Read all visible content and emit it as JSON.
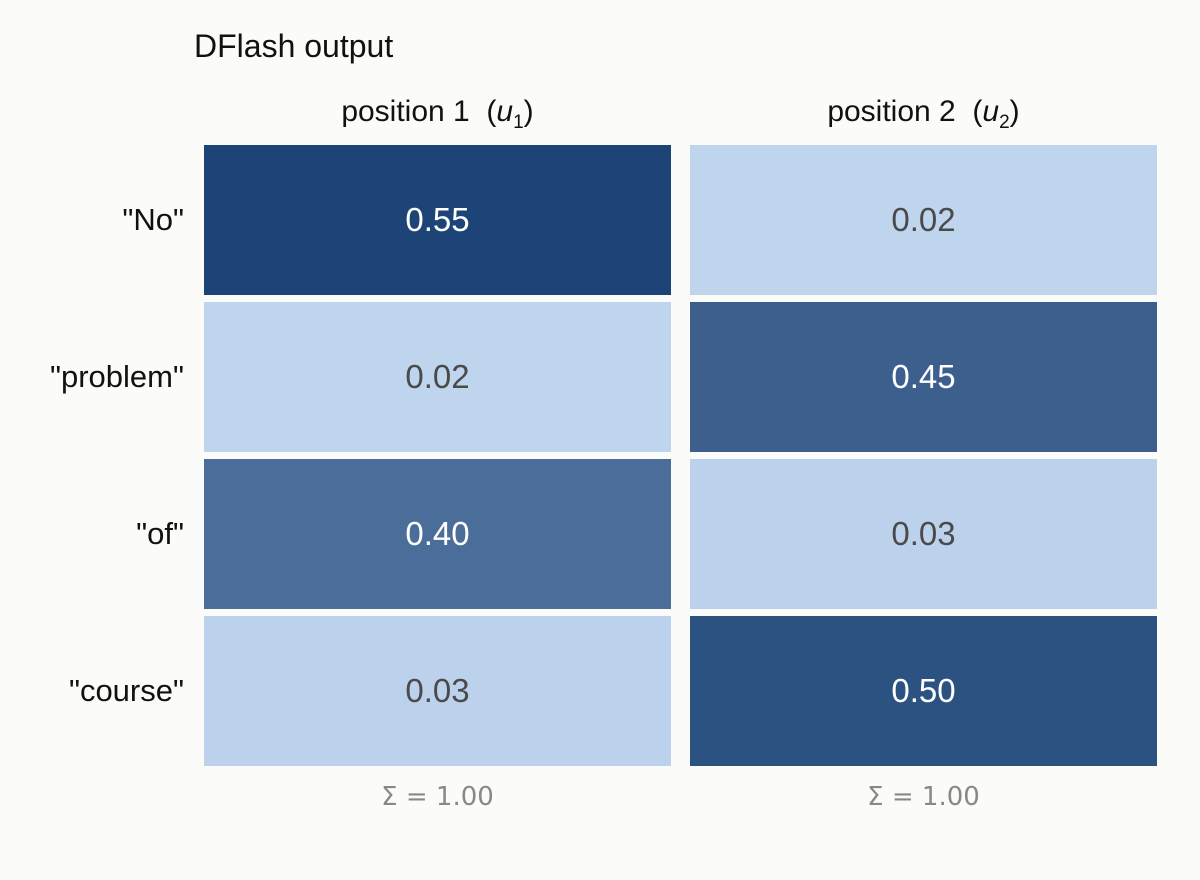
{
  "chart_data": {
    "type": "heatmap",
    "title": "DFlash output",
    "columns": [
      {
        "label": "position 1",
        "var": "u",
        "sub": "1",
        "sum_label": "Σ = 1.00"
      },
      {
        "label": "position 2",
        "var": "u",
        "sub": "2",
        "sum_label": "Σ = 1.00"
      }
    ],
    "rows": [
      "\"No\"",
      "\"problem\"",
      "\"of\"",
      "\"course\""
    ],
    "values": [
      [
        0.55,
        0.02
      ],
      [
        0.02,
        0.45
      ],
      [
        0.4,
        0.03
      ],
      [
        0.03,
        0.5
      ]
    ],
    "value_labels": [
      [
        "0.55",
        "0.02"
      ],
      [
        "0.02",
        "0.45"
      ],
      [
        "0.40",
        "0.03"
      ],
      [
        "0.03",
        "0.50"
      ]
    ],
    "colors": {
      "low": "#c5daf3",
      "high": "#1d4477",
      "text_dark": "#4a4a4a",
      "text_light": "#ffffff"
    }
  }
}
